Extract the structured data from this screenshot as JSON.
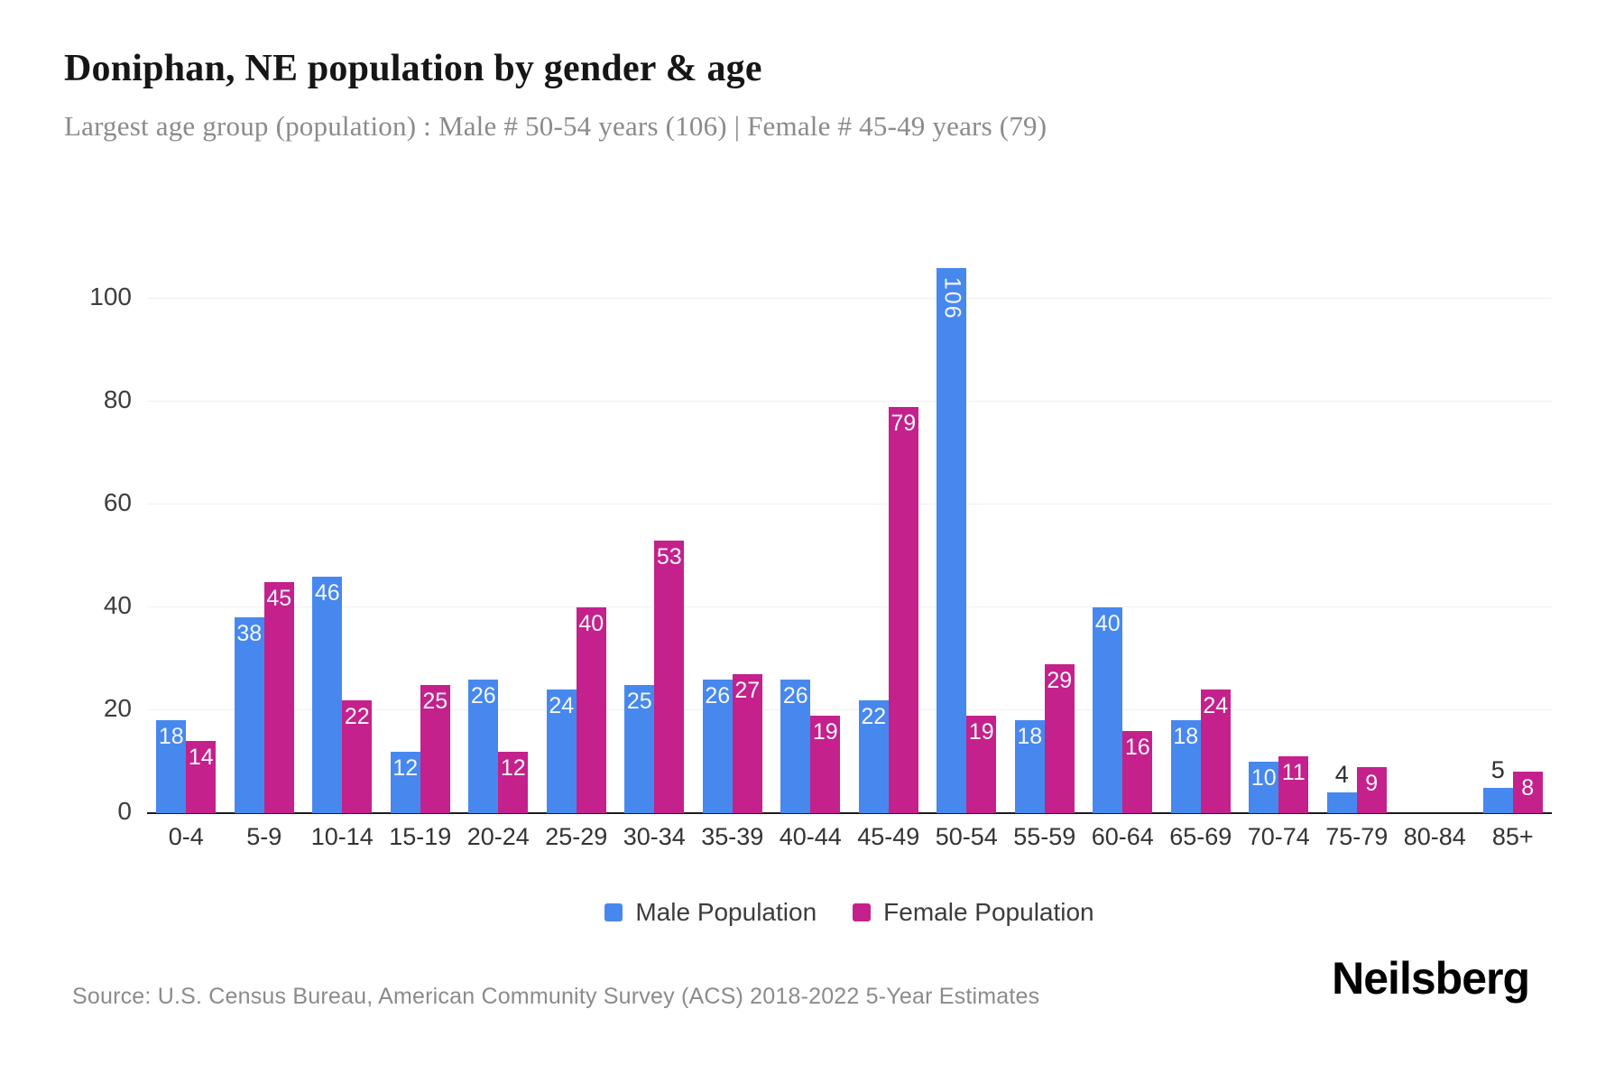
{
  "header": {
    "title": "Doniphan, NE population by gender & age",
    "subtitle": "Largest age group (population) : Male # 50-54 years (106) | Female # 45-49 years (79)"
  },
  "chart_data": {
    "type": "bar",
    "categories": [
      "0-4",
      "5-9",
      "10-14",
      "15-19",
      "20-24",
      "25-29",
      "30-34",
      "35-39",
      "40-44",
      "45-49",
      "50-54",
      "55-59",
      "60-64",
      "65-69",
      "70-74",
      "75-79",
      "80-84",
      "85+"
    ],
    "series": [
      {
        "name": "Male Population",
        "color": "#4788ee",
        "values": [
          18,
          38,
          46,
          12,
          26,
          24,
          25,
          26,
          26,
          22,
          106,
          18,
          40,
          18,
          10,
          4,
          0,
          5
        ]
      },
      {
        "name": "Female Population",
        "color": "#c4218c",
        "values": [
          14,
          45,
          22,
          25,
          12,
          40,
          53,
          27,
          19,
          79,
          19,
          29,
          16,
          24,
          11,
          9,
          0,
          8
        ]
      }
    ],
    "title": "Doniphan, NE population by gender & age",
    "xlabel": "",
    "ylabel": "",
    "yticks": [
      0,
      20,
      40,
      60,
      80,
      100
    ],
    "ylim": [
      0,
      108
    ],
    "grid": "horizontal-only",
    "legend_position": "bottom",
    "bar_value_labels": "inside-top, dark above bar when value <= 5, rotated vertical when value >= 100"
  },
  "colors": {
    "male": "#4788ee",
    "female": "#c4218c",
    "gridline": "#f0f0f0",
    "axis_baseline": "#1c1c1c",
    "tick_text": "#3d3d3d",
    "subtitle_text": "#8b8b8b"
  },
  "footer": {
    "source": "Source: U.S. Census Bureau, American Community Survey (ACS) 2018-2022 5-Year Estimates",
    "brand": "Neilsberg"
  }
}
